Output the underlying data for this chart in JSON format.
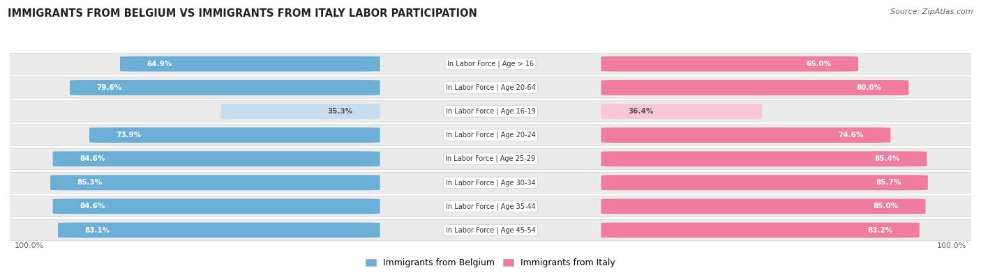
{
  "title": "IMMIGRANTS FROM BELGIUM VS IMMIGRANTS FROM ITALY LABOR PARTICIPATION",
  "source": "Source: ZipAtlas.com",
  "categories": [
    "In Labor Force | Age > 16",
    "In Labor Force | Age 20-64",
    "In Labor Force | Age 16-19",
    "In Labor Force | Age 20-24",
    "In Labor Force | Age 25-29",
    "In Labor Force | Age 30-34",
    "In Labor Force | Age 35-44",
    "In Labor Force | Age 45-54"
  ],
  "belgium_values": [
    64.9,
    79.6,
    35.3,
    73.9,
    84.6,
    85.3,
    84.6,
    83.1
  ],
  "italy_values": [
    65.0,
    80.0,
    36.4,
    74.6,
    85.4,
    85.7,
    85.0,
    83.2
  ],
  "belgium_color": "#6BAED6",
  "belgium_color_light": "#c6dcef",
  "italy_color": "#F07CA0",
  "italy_color_light": "#f9c6d8",
  "row_bg_color": "#ebebeb",
  "label_color_dark": "#555555",
  "label_color_white": "#ffffff",
  "max_value": 100.0,
  "figsize": [
    14.06,
    3.95
  ],
  "dpi": 100,
  "legend_belgium": "Immigrants from Belgium",
  "legend_italy": "Immigrants from Italy"
}
